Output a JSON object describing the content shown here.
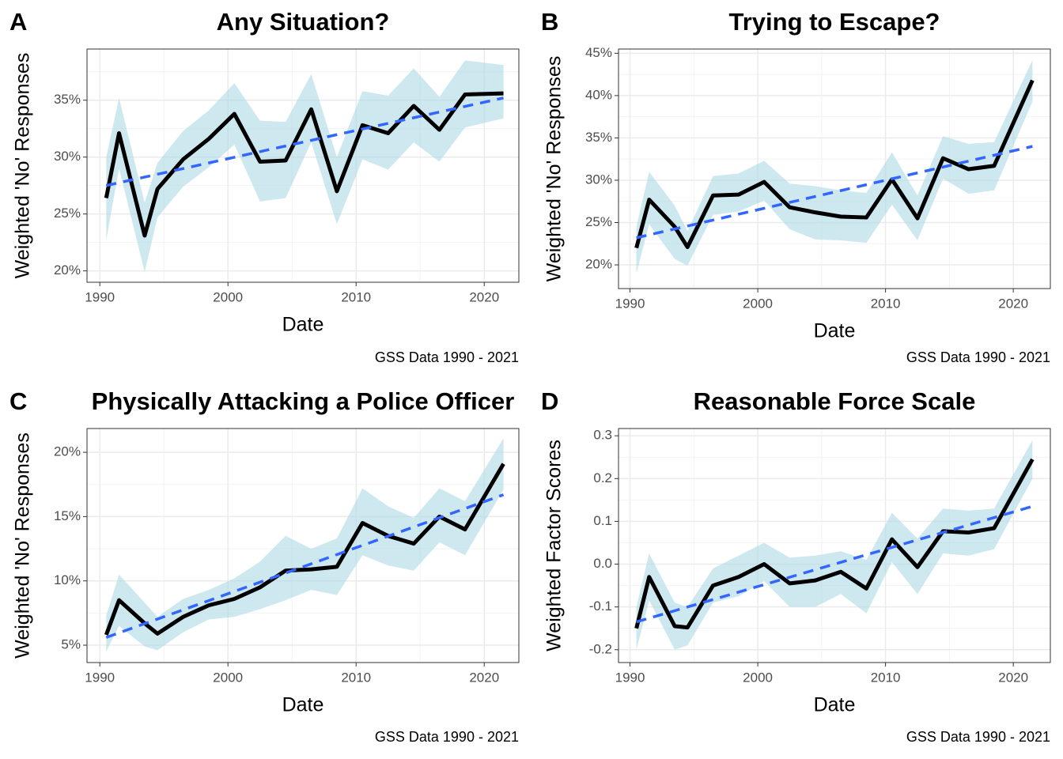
{
  "chart_data": [
    {
      "type": "line",
      "label": "A",
      "title": "Any Situation?",
      "ylabel": "Weighted 'No' Responses",
      "xlabel": "Date",
      "caption": "GSS Data 1990 - 2021",
      "line_color": "#000000",
      "band_color": "#add8e6",
      "trend_color": "#3366ff",
      "grid": true,
      "x": [
        1990.5,
        1991.5,
        1993.5,
        1994.5,
        1996.5,
        1998.5,
        2000.5,
        2002.5,
        2004.5,
        2006.5,
        2008.5,
        2010.5,
        2012.5,
        2014.5,
        2016.5,
        2018.5,
        2021.5
      ],
      "values": [
        26.4,
        32.1,
        23.1,
        27.2,
        29.8,
        31.6,
        33.8,
        29.6,
        29.7,
        34.2,
        27.0,
        32.8,
        32.1,
        34.5,
        32.4,
        35.5,
        35.6
      ],
      "upper": [
        30,
        35.2,
        26,
        29.5,
        32.3,
        34.1,
        36.5,
        33.2,
        33.1,
        37.3,
        30,
        35.8,
        35.4,
        37.8,
        35.3,
        38.5,
        38.1
      ],
      "lower": [
        22.7,
        29,
        19.9,
        24.7,
        27.4,
        29.1,
        31.1,
        26.1,
        26.4,
        31.3,
        24.1,
        29.8,
        28.9,
        31.3,
        29.6,
        32.6,
        33.4
      ],
      "trend_x": [
        1990.5,
        2021.5
      ],
      "trend_values": [
        27.5,
        35.2
      ],
      "xlim": [
        1989.0,
        2022.7
      ],
      "xticks": [
        1990,
        2000,
        2010,
        2020
      ],
      "ylim": [
        19.0,
        39.5
      ],
      "yticks": [
        {
          "value": 20,
          "label": "20%"
        },
        {
          "value": 25,
          "label": "25%"
        },
        {
          "value": 30,
          "label": "30%"
        },
        {
          "value": 35,
          "label": "35%"
        }
      ]
    },
    {
      "type": "line",
      "label": "B",
      "title": "Trying to Escape?",
      "ylabel": "Weighted 'No' Responses",
      "xlabel": "Date",
      "caption": "GSS Data 1990 - 2021",
      "line_color": "#000000",
      "band_color": "#add8e6",
      "trend_color": "#3366ff",
      "grid": true,
      "x": [
        1990.5,
        1991.5,
        1993.5,
        1994.5,
        1996.5,
        1998.5,
        2000.5,
        2002.5,
        2004.5,
        2006.5,
        2008.5,
        2010.5,
        2012.5,
        2014.5,
        2016.5,
        2018.5,
        2021.5
      ],
      "values": [
        22.0,
        27.7,
        24.5,
        22.1,
        28.2,
        28.3,
        29.8,
        26.8,
        26.2,
        25.7,
        25.6,
        30.1,
        25.5,
        32.6,
        31.3,
        31.7,
        41.8
      ],
      "upper": [
        24.5,
        31,
        27,
        24,
        30.5,
        30.8,
        32.3,
        29.6,
        29.3,
        28.8,
        28.5,
        33.3,
        28.2,
        35.2,
        34.3,
        34.5,
        44.2
      ],
      "lower": [
        19,
        24.8,
        20.7,
        19.9,
        25.9,
        26.3,
        27.6,
        24.2,
        23,
        22.9,
        22.6,
        27.1,
        22.9,
        30.2,
        28.4,
        28.8,
        39.3
      ],
      "trend_x": [
        1990.5,
        2021.5
      ],
      "trend_values": [
        23.2,
        34.0
      ],
      "xlim": [
        1989.1,
        2022.9
      ],
      "xticks": [
        1990,
        2000,
        2010,
        2020
      ],
      "ylim": [
        17.2,
        45.5
      ],
      "yticks": [
        {
          "value": 20,
          "label": "20%"
        },
        {
          "value": 25,
          "label": "25%"
        },
        {
          "value": 30,
          "label": "30%"
        },
        {
          "value": 35,
          "label": "35%"
        },
        {
          "value": 40,
          "label": "40%"
        },
        {
          "value": 45,
          "label": "45%"
        }
      ]
    },
    {
      "type": "line",
      "label": "C",
      "title": "Physically Attacking a Police Officer",
      "ylabel": "Weighted 'No' Responses",
      "xlabel": "Date",
      "caption": "GSS Data 1990 - 2021",
      "line_color": "#000000",
      "band_color": "#add8e6",
      "trend_color": "#3366ff",
      "grid": true,
      "x": [
        1990.5,
        1991.5,
        1993.5,
        1994.5,
        1996.5,
        1998.5,
        2000.5,
        2002.5,
        2004.5,
        2006.5,
        2008.5,
        2010.5,
        2012.5,
        2014.5,
        2016.5,
        2018.5,
        2021.5
      ],
      "values": [
        5.8,
        8.5,
        6.7,
        5.9,
        7.2,
        8.1,
        8.6,
        9.5,
        10.8,
        10.9,
        11.1,
        14.5,
        13.5,
        12.9,
        15.0,
        14.0,
        19.1
      ],
      "upper": [
        7.3,
        10.5,
        8.3,
        7.2,
        8.6,
        9.3,
        10.2,
        11.5,
        13.5,
        12.5,
        13.3,
        17.2,
        15.8,
        14.9,
        17.2,
        16.2,
        21.1
      ],
      "lower": [
        4.5,
        6.5,
        4.9,
        4.6,
        6,
        7,
        7.2,
        7.8,
        8.5,
        9.3,
        8.9,
        12,
        11.2,
        10.8,
        13,
        12,
        17.1
      ],
      "trend_x": [
        1990.5,
        2021.5
      ],
      "trend_values": [
        5.6,
        16.7
      ],
      "xlim": [
        1989.0,
        2022.7
      ],
      "xticks": [
        1990,
        2000,
        2010,
        2020
      ],
      "ylim": [
        3.65,
        21.85
      ],
      "yticks": [
        {
          "value": 5,
          "label": "5%"
        },
        {
          "value": 10,
          "label": "10%"
        },
        {
          "value": 15,
          "label": "15%"
        },
        {
          "value": 20,
          "label": "20%"
        }
      ]
    },
    {
      "type": "line",
      "label": "D",
      "title": "Reasonable Force Scale",
      "ylabel": "Weighted Factor Scores",
      "xlabel": "Date",
      "caption": "GSS Data 1990 - 2021",
      "line_color": "#000000",
      "band_color": "#add8e6",
      "trend_color": "#3366ff",
      "grid": true,
      "x": [
        1990.5,
        1991.5,
        1993.5,
        1994.5,
        1996.5,
        1998.5,
        2000.5,
        2002.5,
        2004.5,
        2006.5,
        2008.5,
        2010.5,
        2012.5,
        2014.5,
        2016.5,
        2018.5,
        2021.5
      ],
      "values": [
        -0.15,
        -0.03,
        -0.145,
        -0.148,
        -0.05,
        -0.03,
        0.0,
        -0.045,
        -0.038,
        -0.018,
        -0.057,
        0.058,
        -0.007,
        0.077,
        0.074,
        0.084,
        0.245
      ],
      "upper": [
        -0.1,
        0.025,
        -0.09,
        -0.1,
        -0.01,
        0.02,
        0.05,
        0.015,
        0.02,
        0.03,
        0.01,
        0.12,
        0.06,
        0.13,
        0.125,
        0.13,
        0.29
      ],
      "lower": [
        -0.2,
        -0.085,
        -0.2,
        -0.19,
        -0.09,
        -0.075,
        -0.04,
        -0.1,
        -0.1,
        -0.07,
        -0.115,
        0.005,
        -0.07,
        0.025,
        0.02,
        0.035,
        0.2
      ],
      "trend_x": [
        1990.5,
        2021.5
      ],
      "trend_values": [
        -0.135,
        0.135
      ],
      "xlim": [
        1989.1,
        2022.9
      ],
      "xticks": [
        1990,
        2000,
        2010,
        2020
      ],
      "ylim": [
        -0.23,
        0.317
      ],
      "yticks": [
        -0.2,
        -0.1,
        {
          "value": 0,
          "label": "0.0"
        },
        0.1,
        0.2,
        0.3
      ]
    }
  ]
}
